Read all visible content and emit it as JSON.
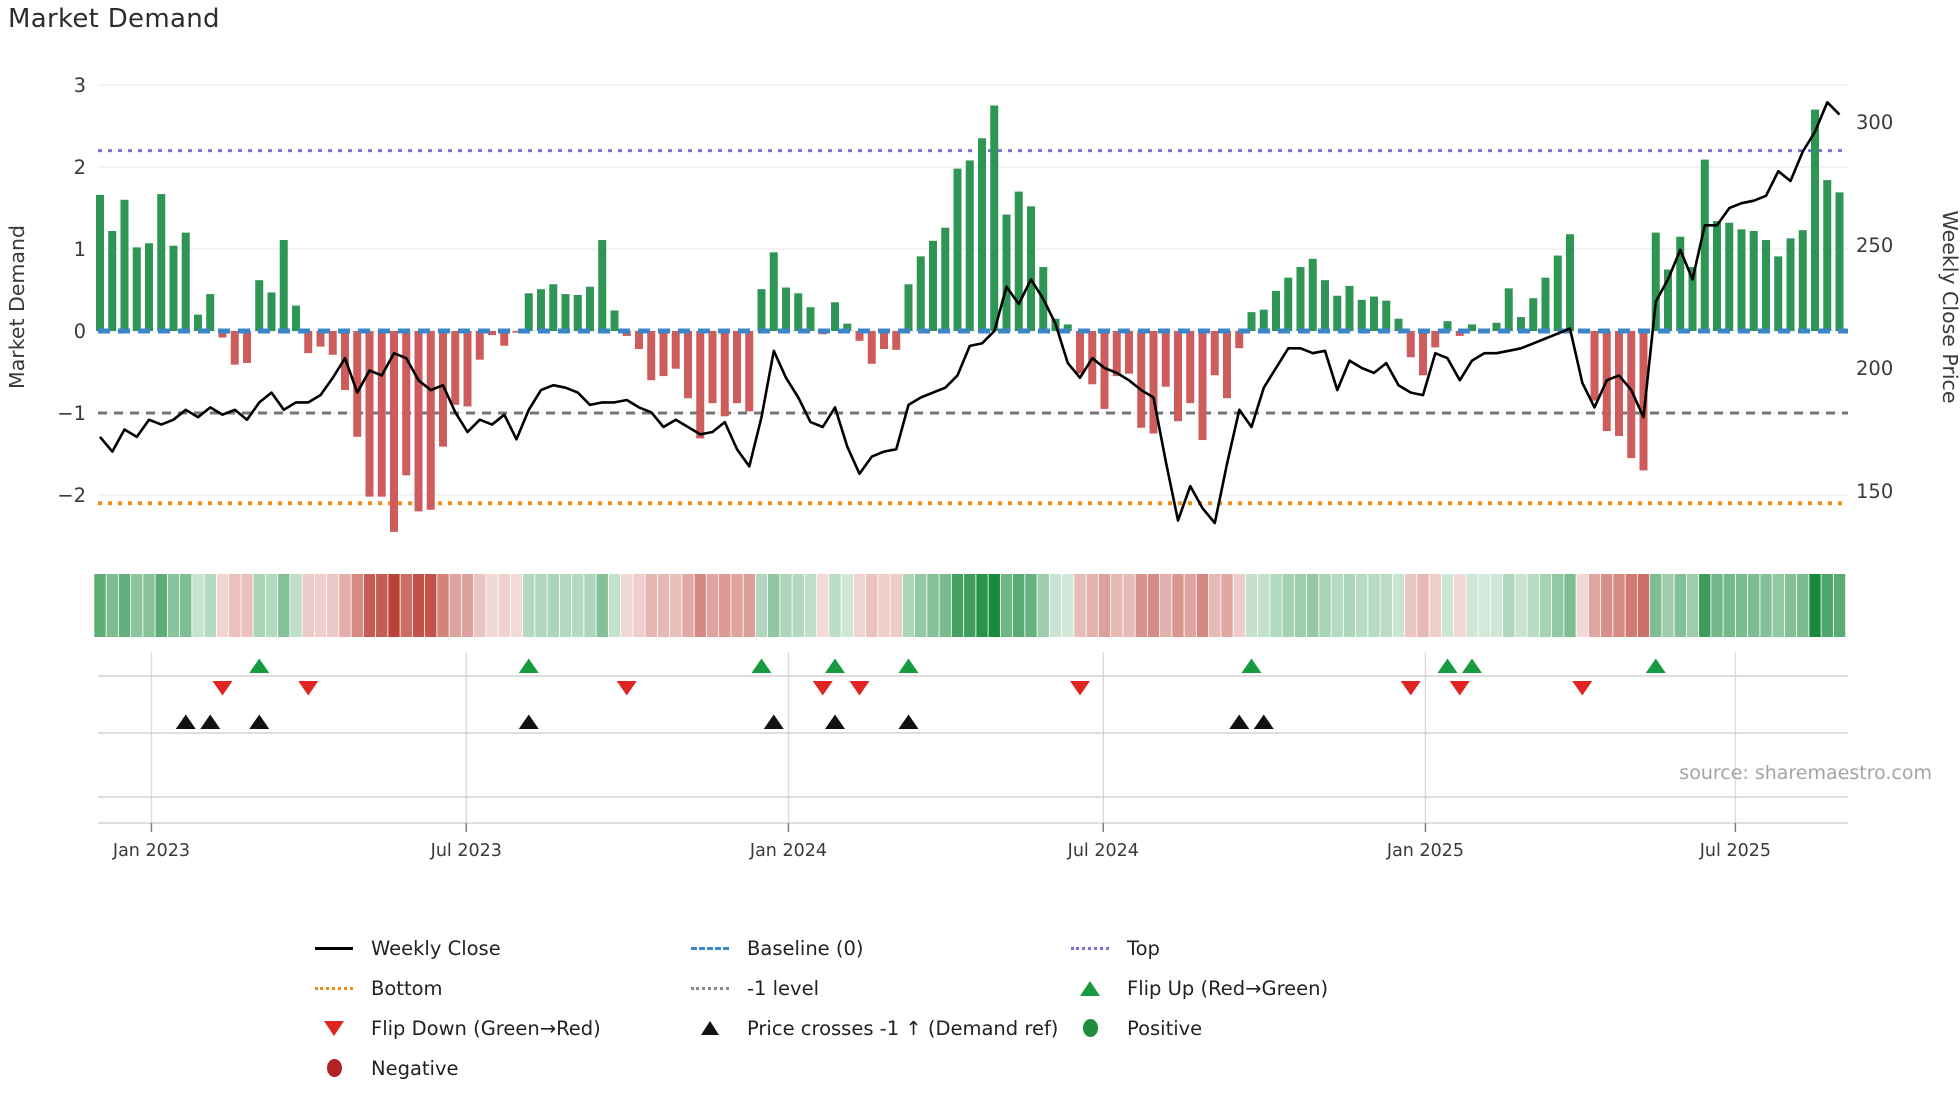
{
  "title": "Market Demand",
  "source_note": "source: sharemaestro.com",
  "colors": {
    "positive_bar": "#2e9555",
    "negative_bar": "#cd5c5c",
    "price_line": "#000000",
    "baseline": "#3c85c8",
    "top_line": "#7b72d9",
    "minus_one_line": "#767676",
    "bottom_line": "#f09018",
    "flip_up_marker": "#169c3e",
    "flip_down_marker": "#e02421",
    "price_cross_marker": "#111111",
    "positive_dot": "#1e8e3e",
    "negative_dot": "#b22222",
    "gridline": "#e9e9f2",
    "row_line": "#c9c9c9"
  },
  "axes": {
    "left_label": "Market Demand",
    "right_label": "Weekly Close Price",
    "left_ticks": [
      {
        "label": "3",
        "value": 3
      },
      {
        "label": "2",
        "value": 2
      },
      {
        "label": "1",
        "value": 1
      },
      {
        "label": "0",
        "value": 0
      },
      {
        "label": "−1",
        "value": -1
      },
      {
        "label": "−2",
        "value": -2
      }
    ],
    "right_ticks": [
      {
        "label": "300",
        "value": 300
      },
      {
        "label": "250",
        "value": 250
      },
      {
        "label": "200",
        "value": 200
      },
      {
        "label": "150",
        "value": 150
      }
    ],
    "x_ticks": [
      {
        "label": "Jan 2023",
        "week": 4.2
      },
      {
        "label": "Jul 2023",
        "week": 29.9
      },
      {
        "label": "Jan 2024",
        "week": 56.2
      },
      {
        "label": "Jul 2024",
        "week": 81.9
      },
      {
        "label": "Jan 2025",
        "week": 108.2
      },
      {
        "label": "Jul 2025",
        "week": 133.5
      }
    ]
  },
  "chart_data": {
    "type": "combo-bar-line-heatmap",
    "x_unit": "weekly bars, week 0 ≈ early Dec 2022 through late Aug 2025",
    "n_weeks": 143,
    "demand": [
      1.66,
      1.22,
      1.6,
      1.02,
      1.07,
      1.67,
      1.04,
      1.2,
      0.2,
      0.45,
      -0.08,
      -0.41,
      -0.39,
      0.62,
      0.47,
      1.11,
      0.31,
      -0.27,
      -0.19,
      -0.29,
      -0.72,
      -1.29,
      -2.02,
      -2.02,
      -2.45,
      -1.76,
      -2.2,
      -2.18,
      -1.41,
      -0.9,
      -0.92,
      -0.35,
      -0.05,
      -0.18,
      -0.02,
      0.46,
      0.51,
      0.57,
      0.45,
      0.44,
      0.54,
      1.11,
      0.25,
      -0.06,
      -0.22,
      -0.6,
      -0.55,
      -0.46,
      -0.82,
      -1.31,
      -0.88,
      -1.04,
      -0.88,
      -0.98,
      0.51,
      0.96,
      0.53,
      0.46,
      0.29,
      -0.04,
      0.35,
      0.09,
      -0.12,
      -0.4,
      -0.22,
      -0.23,
      0.57,
      0.91,
      1.1,
      1.26,
      1.98,
      2.08,
      2.35,
      2.75,
      1.42,
      1.7,
      1.52,
      0.78,
      0.15,
      0.08,
      -0.52,
      -0.65,
      -0.95,
      -0.55,
      -0.52,
      -1.18,
      -1.25,
      -0.68,
      -1.1,
      -0.88,
      -1.33,
      -0.54,
      -0.82,
      -0.21,
      0.23,
      0.26,
      0.49,
      0.65,
      0.78,
      0.88,
      0.62,
      0.43,
      0.55,
      0.38,
      0.42,
      0.37,
      0.15,
      -0.32,
      -0.54,
      -0.2,
      0.12,
      -0.06,
      0.08,
      0.03,
      0.1,
      0.52,
      0.17,
      0.4,
      0.65,
      0.92,
      1.18,
      -0.03,
      -0.85,
      -1.22,
      -1.28,
      -1.55,
      -1.7,
      1.2,
      0.75,
      1.15,
      0.78,
      2.09,
      1.34,
      1.32,
      1.24,
      1.22,
      1.11,
      0.91,
      1.13,
      1.23,
      2.7,
      1.84,
      1.69
    ],
    "price": [
      172,
      166,
      175,
      172,
      179,
      177,
      179,
      183,
      180,
      184,
      181,
      183,
      179,
      186,
      190,
      183,
      186,
      186,
      189,
      196,
      204,
      190,
      199,
      197,
      206,
      204,
      195,
      191,
      193,
      182,
      174,
      179,
      177,
      181,
      171,
      183,
      191,
      193,
      192,
      190,
      185,
      186,
      186,
      187,
      184,
      182,
      176,
      179,
      176,
      173,
      174,
      178,
      167,
      160,
      180,
      207,
      196,
      188,
      178,
      176,
      184,
      168,
      157,
      164,
      166,
      167,
      185,
      188,
      190,
      192,
      197,
      209,
      210,
      215,
      233,
      226,
      236,
      228,
      218,
      202,
      196,
      204,
      200,
      198,
      195,
      191,
      188,
      162,
      138,
      152,
      143,
      137,
      161,
      183,
      176,
      192,
      200,
      208,
      208,
      206,
      207,
      191,
      203,
      200,
      198,
      202,
      193,
      190,
      189,
      206,
      204,
      195,
      203,
      206,
      206,
      207,
      208,
      210,
      212,
      214,
      216,
      194,
      184,
      195,
      197,
      191,
      180,
      227,
      236,
      248,
      236,
      258,
      258,
      265,
      267,
      268,
      270,
      280,
      276,
      288,
      296,
      308,
      303
    ],
    "reference_lines": {
      "baseline": 0,
      "top": 2.2,
      "minus_one": -1,
      "bottom": -2.1
    },
    "ylim_demand": [
      -2.65,
      3.2
    ],
    "price_ticks": [
      150,
      200,
      250,
      300
    ],
    "markers": {
      "flip_up_weeks": [
        13,
        35,
        54,
        60,
        66,
        94,
        110,
        112,
        127
      ],
      "flip_down_weeks": [
        10,
        17,
        43,
        59,
        62,
        80,
        107,
        111,
        121
      ],
      "price_cross_weeks": [
        7,
        9,
        13,
        35,
        55,
        60,
        66,
        93,
        95
      ]
    },
    "heatmap": "strip of one cell per week; green shades for positive demand, red shades for negative, intensity proportional to |value|"
  },
  "legend": {
    "columns": [
      [
        {
          "label": "Weekly Close",
          "marker": "line-black"
        },
        {
          "label": "Bottom",
          "marker": "dot-orange"
        },
        {
          "label": "Flip Down (Green→Red)",
          "marker": "tri-down-red"
        },
        {
          "label": "Negative",
          "marker": "circle-darkred"
        }
      ],
      [
        {
          "label": "Baseline (0)",
          "marker": "dash-blue"
        },
        {
          "label": "-1 level",
          "marker": "dot-gray"
        },
        {
          "label": "Price crosses -1 ↑ (Demand ref)",
          "marker": "tri-up-black"
        }
      ],
      [
        {
          "label": "Top",
          "marker": "dot-purple"
        },
        {
          "label": "Flip Up (Red→Green)",
          "marker": "tri-up-green"
        },
        {
          "label": "Positive",
          "marker": "circle-green"
        }
      ]
    ]
  }
}
